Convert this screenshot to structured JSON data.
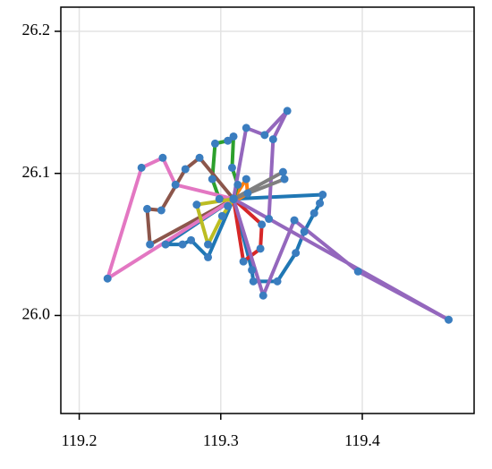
{
  "chart_data": {
    "type": "line",
    "xlim": [
      119.187,
      119.479
    ],
    "ylim": [
      25.931,
      26.217
    ],
    "xticks": [
      119.2,
      119.3,
      119.4
    ],
    "yticks": [
      {
        "value": 26.0,
        "label": "26.0"
      },
      26.1,
      26.2
    ],
    "grid": true,
    "marker_color": "#3a7dbf",
    "series": [
      {
        "color": "#1f77b4",
        "x": [
          119.309,
          119.372,
          119.37,
          119.366,
          119.359,
          119.353,
          119.34,
          119.323,
          119.322,
          119.309,
          null,
          119.309,
          119.291,
          119.279,
          119.273,
          119.261,
          119.309
        ],
        "values": [
          26.082,
          26.085,
          26.079,
          26.072,
          26.059,
          26.044,
          26.024,
          26.024,
          26.032,
          26.082,
          null,
          26.082,
          26.041,
          26.053,
          26.05,
          26.05,
          26.082
        ]
      },
      {
        "color": "#ff7f0e",
        "x": [
          119.309,
          119.318,
          119.319,
          119.305,
          119.309
        ],
        "values": [
          26.082,
          26.096,
          26.086,
          26.077,
          26.082
        ]
      },
      {
        "color": "#2ca02c",
        "x": [
          119.309,
          119.299,
          119.294,
          119.296,
          119.305,
          119.309,
          119.308,
          119.312,
          119.309
        ],
        "values": [
          26.082,
          26.082,
          26.096,
          26.121,
          26.123,
          26.126,
          26.104,
          26.092,
          26.082
        ]
      },
      {
        "color": "#d62728",
        "x": [
          119.309,
          119.316,
          119.328,
          119.329,
          119.309
        ],
        "values": [
          26.082,
          26.038,
          26.047,
          26.064,
          26.082
        ]
      },
      {
        "color": "#9467bd",
        "x": [
          119.309,
          119.461,
          119.397,
          119.352,
          119.33,
          119.309,
          null,
          119.309,
          119.318,
          119.331,
          119.347,
          119.337,
          119.334,
          119.309
        ],
        "values": [
          26.082,
          25.997,
          26.031,
          26.067,
          26.014,
          26.082,
          null,
          26.082,
          26.132,
          26.127,
          26.144,
          26.124,
          26.068,
          26.082
        ]
      },
      {
        "color": "#8c564b",
        "x": [
          119.309,
          119.285,
          119.275,
          119.258,
          119.248,
          119.25,
          119.309
        ],
        "values": [
          26.082,
          26.111,
          26.103,
          26.074,
          26.075,
          26.05,
          26.082
        ]
      },
      {
        "color": "#e377c2",
        "x": [
          119.309,
          119.268,
          119.259,
          119.244,
          119.22,
          119.309
        ],
        "values": [
          26.082,
          26.092,
          26.111,
          26.104,
          26.026,
          26.082
        ]
      },
      {
        "color": "#7f7f7f",
        "x": [
          119.309,
          119.344,
          119.345,
          119.309
        ],
        "values": [
          26.082,
          26.101,
          26.096,
          26.082
        ]
      },
      {
        "color": "#bcbd22",
        "x": [
          119.309,
          119.283,
          119.291,
          119.301,
          119.309
        ],
        "values": [
          26.082,
          26.078,
          26.05,
          26.07,
          26.082
        ]
      }
    ]
  }
}
